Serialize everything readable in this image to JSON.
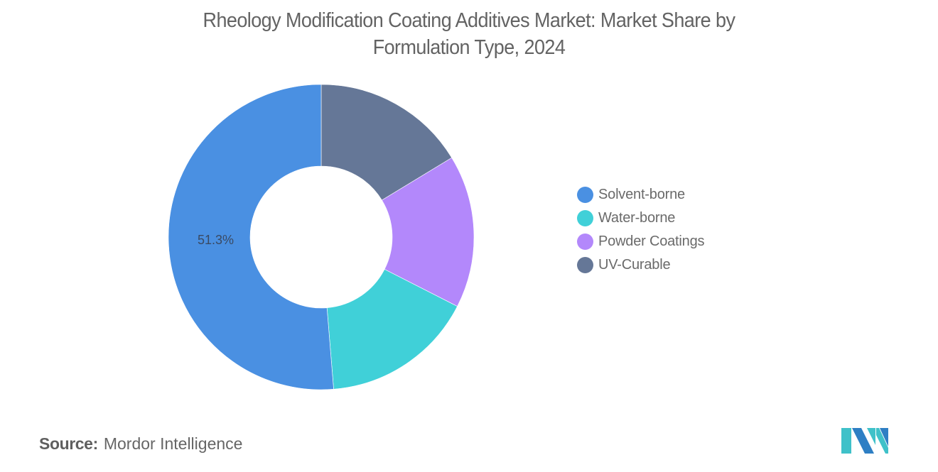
{
  "title": {
    "line1": "Rheology Modification Coating Additives Market: Market Share by",
    "line2": "Formulation Type, 2024"
  },
  "legend": {
    "items": [
      {
        "label": "Solvent-borne",
        "color": "#4a90e2"
      },
      {
        "label": "Water-borne",
        "color": "#40d0d8"
      },
      {
        "label": "Powder Coatings",
        "color": "#b388fb"
      },
      {
        "label": "UV-Curable",
        "color": "#657797"
      }
    ]
  },
  "labels": {
    "solvent_share": "51.3%"
  },
  "source": {
    "key": "Source:",
    "value": "Mordor Intelligence"
  },
  "logo": {
    "name": "mordor-intelligence-logo",
    "colors": [
      "#3fc1c9",
      "#2e7fc4"
    ]
  },
  "chart_data": {
    "type": "pie",
    "variant": "donut",
    "title": "Rheology Modification Coating Additives Market: Market Share by Formulation Type, 2024",
    "categories": [
      "Solvent-borne",
      "Water-borne",
      "Powder Coatings",
      "UV-Curable"
    ],
    "values": [
      51.3,
      16.2,
      16.2,
      16.3
    ],
    "colors": [
      "#4a90e2",
      "#40d0d8",
      "#b388fb",
      "#657797"
    ],
    "unit": "%",
    "data_labels": [
      {
        "category": "Solvent-borne",
        "text": "51.3%"
      }
    ],
    "legend_position": "right",
    "start_angle_deg": 0,
    "direction": "counterclockwise-from-top for Solvent-borne; UV-Curable starts at top going clockwise",
    "center": [
      452,
      334
    ],
    "outer_radius": 215,
    "inner_radius": 100
  }
}
